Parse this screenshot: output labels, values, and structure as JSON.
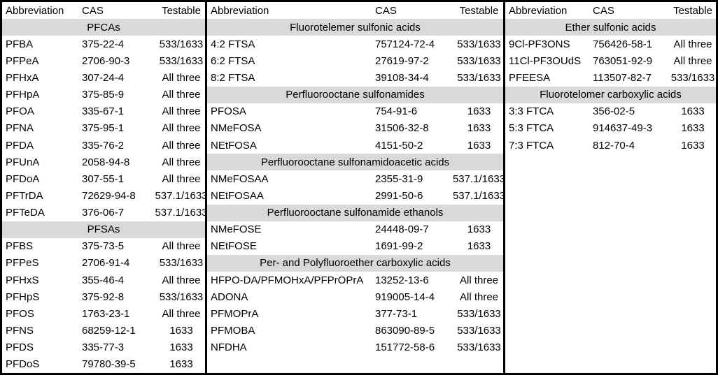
{
  "colors": {
    "section_bg": "#d9d9d9",
    "border": "#000000",
    "background": "#ffffff",
    "text": "#000000"
  },
  "table": {
    "total_rows": 22,
    "panels": [
      {
        "name": "panel-pfcas-pfsas",
        "columns": [
          "Abbreviation",
          "CAS",
          "Testable"
        ],
        "rows": [
          {
            "section": "PFCAs"
          },
          {
            "abbr": "PFBA",
            "cas": "375-22-4",
            "testable": "533/1633"
          },
          {
            "abbr": "PFPeA",
            "cas": "2706-90-3",
            "testable": "533/1633"
          },
          {
            "abbr": "PFHxA",
            "cas": "307-24-4",
            "testable": "All three"
          },
          {
            "abbr": "PFHpA",
            "cas": "375-85-9",
            "testable": "All three"
          },
          {
            "abbr": "PFOA",
            "cas": "335-67-1",
            "testable": "All three"
          },
          {
            "abbr": "PFNA",
            "cas": "375-95-1",
            "testable": "All three"
          },
          {
            "abbr": "PFDA",
            "cas": "335-76-2",
            "testable": "All three"
          },
          {
            "abbr": "PFUnA",
            "cas": "2058-94-8",
            "testable": "All three"
          },
          {
            "abbr": "PFDoA",
            "cas": "307-55-1",
            "testable": "All three"
          },
          {
            "abbr": "PFTrDA",
            "cas": "72629-94-8",
            "testable": "537.1/1633"
          },
          {
            "abbr": "PFTeDA",
            "cas": "376-06-7",
            "testable": "537.1/1633"
          },
          {
            "section": "PFSAs"
          },
          {
            "abbr": "PFBS",
            "cas": "375-73-5",
            "testable": "All three"
          },
          {
            "abbr": "PFPeS",
            "cas": "2706-91-4",
            "testable": "533/1633"
          },
          {
            "abbr": "PFHxS",
            "cas": "355-46-4",
            "testable": "All three"
          },
          {
            "abbr": "PFHpS",
            "cas": "375-92-8",
            "testable": "533/1633"
          },
          {
            "abbr": "PFOS",
            "cas": "1763-23-1",
            "testable": "All three"
          },
          {
            "abbr": "PFNS",
            "cas": "68259-12-1",
            "testable": "1633"
          },
          {
            "abbr": "PFDS",
            "cas": "335-77-3",
            "testable": "1633"
          },
          {
            "abbr": "PFDoS",
            "cas": "79780-39-5",
            "testable": "1633"
          }
        ]
      },
      {
        "name": "panel-sulfonamides-ethers",
        "columns": [
          "Abbreviation",
          "CAS",
          "Testable"
        ],
        "rows": [
          {
            "section": "Fluorotelemer sulfonic acids"
          },
          {
            "abbr": "4:2 FTSA",
            "cas": "757124-72-4",
            "testable": "533/1633"
          },
          {
            "abbr": "6:2 FTSA",
            "cas": "27619-97-2",
            "testable": "533/1633"
          },
          {
            "abbr": "8:2 FTSA",
            "cas": "39108-34-4",
            "testable": "533/1633"
          },
          {
            "section": "Perfluorooctane sulfonamides"
          },
          {
            "abbr": "PFOSA",
            "cas": "754-91-6",
            "testable": "1633"
          },
          {
            "abbr": "NMeFOSA",
            "cas": "31506-32-8",
            "testable": "1633"
          },
          {
            "abbr": "NEtFOSA",
            "cas": "4151-50-2",
            "testable": "1633"
          },
          {
            "section": "Perfluorooctane sulfonamidoacetic acids"
          },
          {
            "abbr": "NMeFOSAA",
            "cas": "2355-31-9",
            "testable": "537.1/1633"
          },
          {
            "abbr": "NEtFOSAA",
            "cas": "2991-50-6",
            "testable": "537.1/1633"
          },
          {
            "section": "Perfluorooctane sulfonamide ethanols"
          },
          {
            "abbr": "NMeFOSE",
            "cas": "24448-09-7",
            "testable": "1633"
          },
          {
            "abbr": "NEtFOSE",
            "cas": "1691-99-2",
            "testable": "1633"
          },
          {
            "section": "Per- and Polyfluoroether carboxylic acids"
          },
          {
            "abbr": "HFPO-DA/PFMOHxA/PFPrOPrA",
            "cas": "13252-13-6",
            "testable": "All three"
          },
          {
            "abbr": "ADONA",
            "cas": "919005-14-4",
            "testable": "All three"
          },
          {
            "abbr": "PFMOPrA",
            "cas": "377-73-1",
            "testable": "533/1633"
          },
          {
            "abbr": "PFMOBA",
            "cas": "863090-89-5",
            "testable": "533/1633"
          },
          {
            "abbr": "NFDHA",
            "cas": "151772-58-6",
            "testable": "533/1633"
          }
        ]
      },
      {
        "name": "panel-ether-sulfonic-ftca",
        "columns": [
          "Abbreviation",
          "CAS",
          "Testable"
        ],
        "rows": [
          {
            "section": "Ether sulfonic acids"
          },
          {
            "abbr": "9Cl-PF3ONS",
            "cas": "756426-58-1",
            "testable": "All three"
          },
          {
            "abbr": "11Cl-PF3OUdS",
            "cas": "763051-92-9",
            "testable": "All three"
          },
          {
            "abbr": "PFEESA",
            "cas": "113507-82-7",
            "testable": "533/1633"
          },
          {
            "section": "Fluorotelomer carboxylic acids"
          },
          {
            "abbr": "3:3 FTCA",
            "cas": "356-02-5",
            "testable": "1633"
          },
          {
            "abbr": "5:3 FTCA",
            "cas": "914637-49-3",
            "testable": "1633"
          },
          {
            "abbr": "7:3 FTCA",
            "cas": "812-70-4",
            "testable": "1633"
          }
        ]
      }
    ]
  }
}
